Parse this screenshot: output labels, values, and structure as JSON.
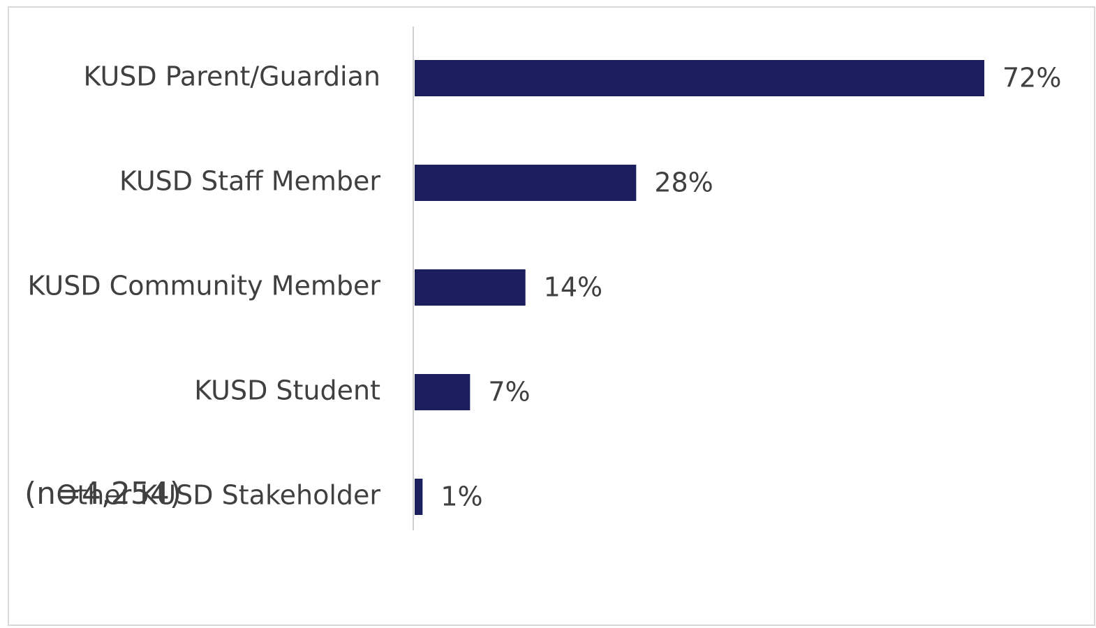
{
  "chart_data": {
    "type": "bar",
    "orientation": "horizontal",
    "categories": [
      "KUSD Parent/Guardian",
      "KUSD Staff Member",
      "KUSD Community Member",
      "KUSD Student",
      "Other KUSD Stakeholder"
    ],
    "values": [
      72,
      28,
      14,
      7,
      1
    ],
    "value_labels": [
      "72%",
      "28%",
      "14%",
      "7%",
      "1%"
    ],
    "color": "#1b1f5e",
    "annotation": "(n=4,254)"
  }
}
